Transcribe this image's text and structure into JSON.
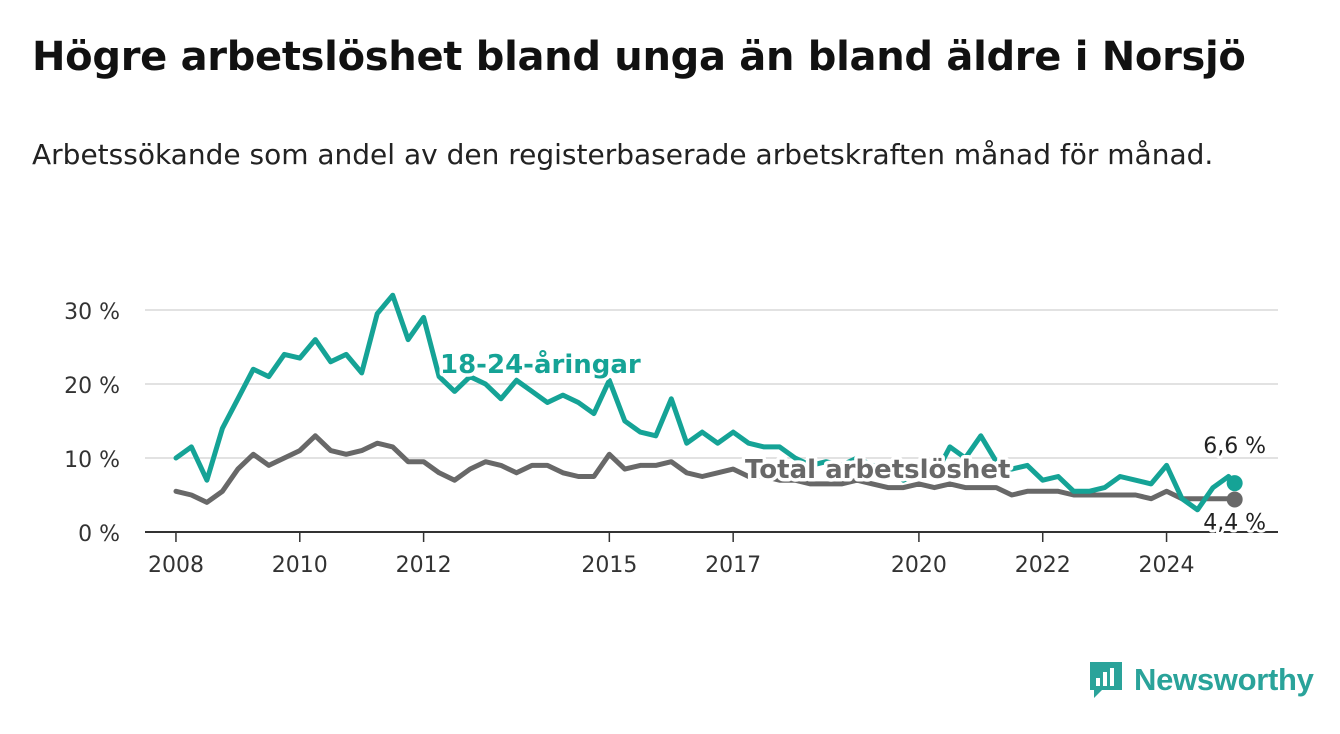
{
  "title": "Högre arbetslöshet bland unga än bland äldre i Norsjö",
  "subtitle": "Arbetssökande som andel av den registerbaserade arbetskraften månad för månad.",
  "brand": {
    "name": "Newsworthy",
    "color": "#2aa39a",
    "icon": "newsworthy-logo-icon"
  },
  "chart_data": {
    "type": "line",
    "grid": true,
    "ylim": [
      0,
      30
    ],
    "xlim": [
      2007.5,
      2025.8
    ],
    "ytick_values": [
      0,
      10,
      20,
      30
    ],
    "ytick_labels": [
      "0 %",
      "10 %",
      "20 %",
      "30 %"
    ],
    "xtick_values": [
      2008,
      2010,
      2012,
      2015,
      2017,
      2020,
      2022,
      2024
    ],
    "xtick_labels": [
      "2008",
      "2010",
      "2012",
      "2015",
      "2017",
      "2020",
      "2022",
      "2024"
    ],
    "series": [
      {
        "name": "18-24-åringar",
        "color": "#15a396",
        "end_label": "6,6 %",
        "x": [
          2008.0,
          2008.25,
          2008.5,
          2008.75,
          2009.0,
          2009.25,
          2009.5,
          2009.75,
          2010.0,
          2010.25,
          2010.5,
          2010.75,
          2011.0,
          2011.25,
          2011.5,
          2011.75,
          2012.0,
          2012.25,
          2012.5,
          2012.75,
          2013.0,
          2013.25,
          2013.5,
          2013.75,
          2014.0,
          2014.25,
          2014.5,
          2014.75,
          2015.0,
          2015.25,
          2015.5,
          2015.75,
          2016.0,
          2016.25,
          2016.5,
          2016.75,
          2017.0,
          2017.25,
          2017.5,
          2017.75,
          2018.0,
          2018.25,
          2018.5,
          2018.75,
          2019.0,
          2019.25,
          2019.5,
          2019.75,
          2020.0,
          2020.25,
          2020.5,
          2020.75,
          2021.0,
          2021.25,
          2021.5,
          2021.75,
          2022.0,
          2022.25,
          2022.5,
          2022.75,
          2023.0,
          2023.25,
          2023.5,
          2023.75,
          2024.0,
          2024.25,
          2024.5,
          2024.75,
          2025.0,
          2025.1
        ],
        "y": [
          10.0,
          11.5,
          7.0,
          14.0,
          18.0,
          22.0,
          21.0,
          24.0,
          23.5,
          26.0,
          23.0,
          24.0,
          21.5,
          29.5,
          32.0,
          26.0,
          29.0,
          21.0,
          19.0,
          21.0,
          20.0,
          18.0,
          20.5,
          19.0,
          17.5,
          18.5,
          17.5,
          16.0,
          20.5,
          15.0,
          13.5,
          13.0,
          18.0,
          12.0,
          13.5,
          12.0,
          13.5,
          12.0,
          11.5,
          11.5,
          10.0,
          9.0,
          9.5,
          9.0,
          10.0,
          9.0,
          8.5,
          7.0,
          8.0,
          7.5,
          11.5,
          10.0,
          13.0,
          9.5,
          8.5,
          9.0,
          7.0,
          7.5,
          5.5,
          5.5,
          6.0,
          7.5,
          7.0,
          6.5,
          9.0,
          4.5,
          3.0,
          6.0,
          7.5,
          6.6
        ]
      },
      {
        "name": "Total arbetslöshet",
        "color": "#686868",
        "end_label": "4,4 %",
        "x": [
          2008.0,
          2008.25,
          2008.5,
          2008.75,
          2009.0,
          2009.25,
          2009.5,
          2009.75,
          2010.0,
          2010.25,
          2010.5,
          2010.75,
          2011.0,
          2011.25,
          2011.5,
          2011.75,
          2012.0,
          2012.25,
          2012.5,
          2012.75,
          2013.0,
          2013.25,
          2013.5,
          2013.75,
          2014.0,
          2014.25,
          2014.5,
          2014.75,
          2015.0,
          2015.25,
          2015.5,
          2015.75,
          2016.0,
          2016.25,
          2016.5,
          2016.75,
          2017.0,
          2017.25,
          2017.5,
          2017.75,
          2018.0,
          2018.25,
          2018.5,
          2018.75,
          2019.0,
          2019.25,
          2019.5,
          2019.75,
          2020.0,
          2020.25,
          2020.5,
          2020.75,
          2021.0,
          2021.25,
          2021.5,
          2021.75,
          2022.0,
          2022.25,
          2022.5,
          2022.75,
          2023.0,
          2023.25,
          2023.5,
          2023.75,
          2024.0,
          2024.25,
          2024.5,
          2024.75,
          2025.0,
          2025.1
        ],
        "y": [
          5.5,
          5.0,
          4.0,
          5.5,
          8.5,
          10.5,
          9.0,
          10.0,
          11.0,
          13.0,
          11.0,
          10.5,
          11.0,
          12.0,
          11.5,
          9.5,
          9.5,
          8.0,
          7.0,
          8.5,
          9.5,
          9.0,
          8.0,
          9.0,
          9.0,
          8.0,
          7.5,
          7.5,
          10.5,
          8.5,
          9.0,
          9.0,
          9.5,
          8.0,
          7.5,
          8.0,
          8.5,
          7.5,
          7.5,
          7.0,
          7.0,
          6.5,
          6.5,
          6.5,
          7.0,
          6.5,
          6.0,
          6.0,
          6.5,
          6.0,
          6.5,
          6.0,
          6.0,
          6.0,
          5.0,
          5.5,
          5.5,
          5.5,
          5.0,
          5.0,
          5.0,
          5.0,
          5.0,
          4.5,
          5.5,
          4.5,
          4.5,
          4.5,
          4.5,
          4.4
        ]
      }
    ]
  }
}
